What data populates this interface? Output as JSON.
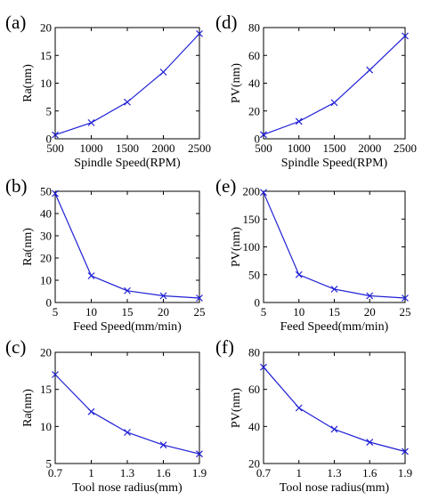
{
  "line_color": "#1f1fd6",
  "chart_data": [
    {
      "panel_label": "(a)",
      "type": "line",
      "marker": "x",
      "xlabel": "Spindle Speed(RPM)",
      "ylabel": "Ra(nm)",
      "xlim": [
        500,
        2500
      ],
      "ylim": [
        0,
        20
      ],
      "xticks": [
        500,
        1000,
        1500,
        2000,
        2500
      ],
      "yticks": [
        0,
        5,
        10,
        15,
        20
      ],
      "x": [
        500,
        1000,
        1500,
        2000,
        2500
      ],
      "y": [
        0.7,
        2.9,
        6.6,
        12.0,
        18.9
      ]
    },
    {
      "panel_label": "(d)",
      "type": "line",
      "marker": "x",
      "xlabel": "Spindle Speed(RPM)",
      "ylabel": "PV(nm)",
      "xlim": [
        500,
        2500
      ],
      "ylim": [
        0,
        80
      ],
      "xticks": [
        500,
        1000,
        1500,
        2000,
        2500
      ],
      "yticks": [
        0,
        20,
        40,
        60,
        80
      ],
      "x": [
        500,
        1000,
        1500,
        2000,
        2500
      ],
      "y": [
        3,
        12.5,
        26,
        49.5,
        74
      ]
    },
    {
      "panel_label": "(b)",
      "type": "line",
      "marker": "x",
      "xlabel": "Feed Speed(mm/min)",
      "ylabel": "Ra(nm)",
      "xlim": [
        5,
        25
      ],
      "ylim": [
        0,
        50
      ],
      "xticks": [
        5,
        10,
        15,
        20,
        25
      ],
      "yticks": [
        0,
        10,
        20,
        30,
        40,
        50
      ],
      "x": [
        5,
        10,
        15,
        20,
        25
      ],
      "y": [
        49,
        12,
        5.3,
        3.0,
        2.0
      ]
    },
    {
      "panel_label": "(e)",
      "type": "line",
      "marker": "x",
      "xlabel": "Feed Speed(mm/min)",
      "ylabel": "PV(nm)",
      "xlim": [
        5,
        25
      ],
      "ylim": [
        0,
        200
      ],
      "xticks": [
        5,
        10,
        15,
        20,
        25
      ],
      "yticks": [
        0,
        50,
        100,
        150,
        200
      ],
      "x": [
        5,
        10,
        15,
        20,
        25
      ],
      "y": [
        198,
        50,
        24,
        12,
        8
      ]
    },
    {
      "panel_label": "(c)",
      "type": "line",
      "marker": "x",
      "xlabel": "Tool nose radius(mm)",
      "ylabel": "Ra(nm)",
      "xlim": [
        0.7,
        1.9
      ],
      "ylim": [
        5,
        20
      ],
      "xticks": [
        "0.7",
        "1",
        "1.3",
        "1.6",
        "1.9"
      ],
      "yticks": [
        5,
        10,
        15,
        20
      ],
      "x": [
        0.7,
        1.0,
        1.3,
        1.6,
        1.9
      ],
      "y": [
        17.0,
        12.0,
        9.2,
        7.5,
        6.3
      ]
    },
    {
      "panel_label": "(f)",
      "type": "line",
      "marker": "x",
      "xlabel": "Tool nose radius(mm)",
      "ylabel": "PV(nm)",
      "xlim": [
        0.7,
        1.9
      ],
      "ylim": [
        20,
        80
      ],
      "xticks": [
        "0.7",
        "1",
        "1.3",
        "1.6",
        "1.9"
      ],
      "yticks": [
        20,
        40,
        60,
        80
      ],
      "x": [
        0.7,
        1.0,
        1.3,
        1.6,
        1.9
      ],
      "y": [
        72,
        50,
        38.5,
        31.5,
        26.5
      ]
    }
  ]
}
